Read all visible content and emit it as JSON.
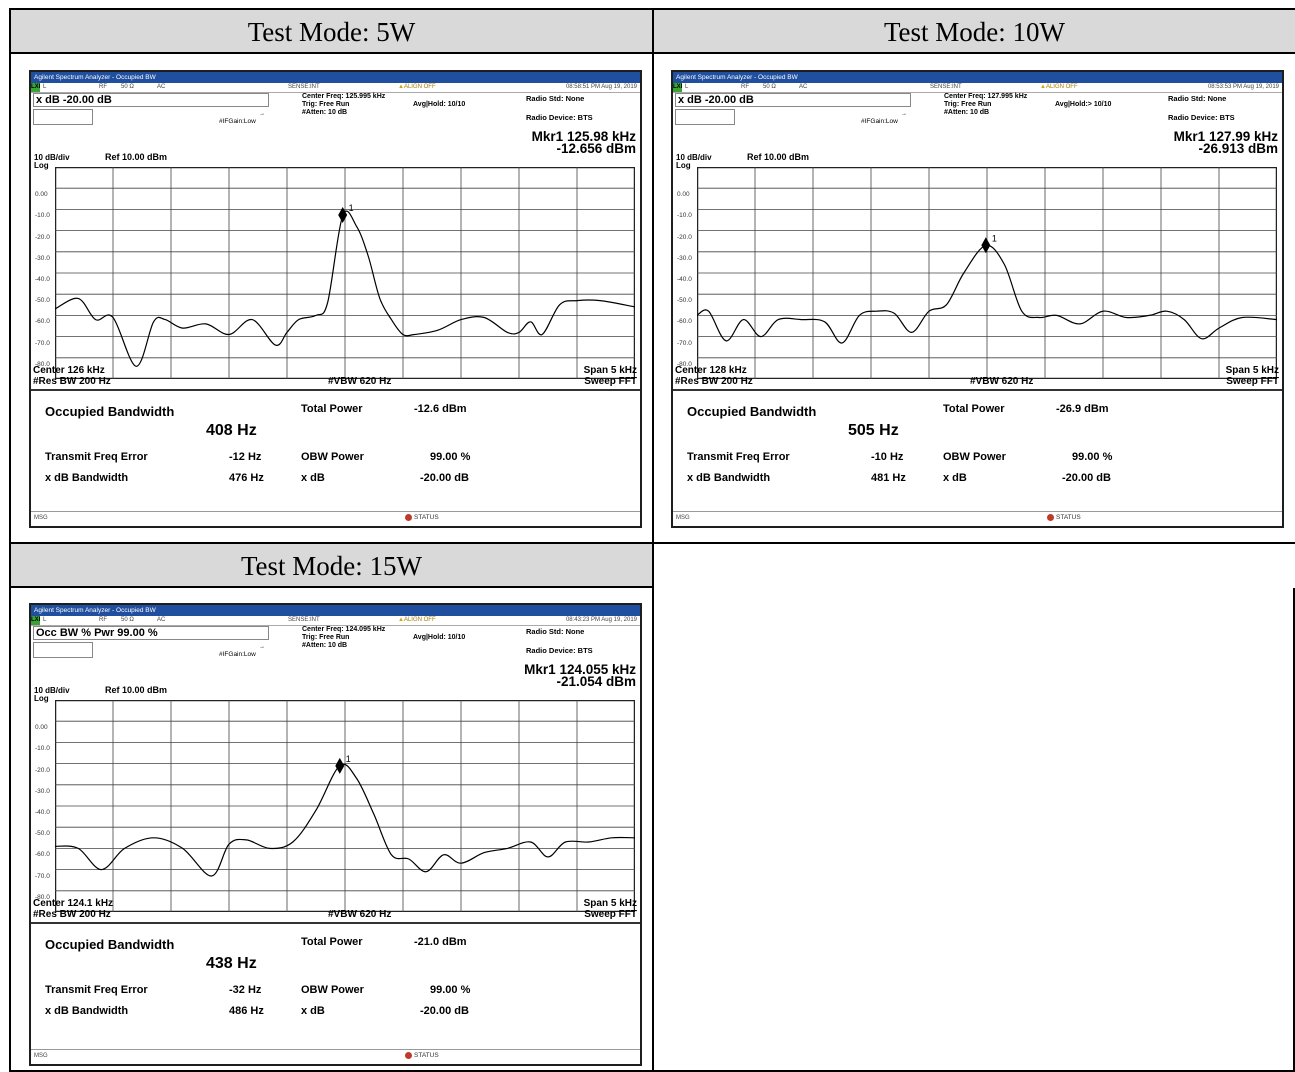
{
  "panels": [
    {
      "header": "Test Mode: 5W",
      "title": "Agilent Spectrum Analyzer - Occupied BW",
      "status": {
        "mode": "L",
        "rf": "RF",
        "imp": "50 Ω",
        "coupling": "AC",
        "sense": "SENSE:INT",
        "align": "ALIGN OFF",
        "time": "08:58:51 PM Aug 19, 2019"
      },
      "box_label": "x dB -20.00 dB",
      "center_freq": "Center Freq: 125.995 kHz",
      "trig": "Trig: Free Run",
      "avg_hold": "Avg|Hold: 10/10",
      "atten": "#Atten: 10 dB",
      "ifgain": "#IFGain:Low",
      "radio_std": "Radio Std: None",
      "radio_device": "Radio Device: BTS",
      "marker_line1": "Mkr1  125.98 kHz",
      "marker_line2": "-12.656 dBm",
      "scale_div": "10 dB/div",
      "scale_log": "Log",
      "ref": "Ref 10.00 dBm",
      "center": "Center  126 kHz",
      "span": "Span 5 kHz",
      "rbw": "#Res BW  200 Hz",
      "vbw": "#VBW  620 Hz",
      "sweep": "Sweep FFT",
      "occupied_bw_label": "Occupied Bandwidth",
      "occupied_bw": "408 Hz",
      "total_power_label": "Total Power",
      "total_power": "-12.6 dBm",
      "freq_err_label": "Transmit Freq Error",
      "freq_err": "-12 Hz",
      "obw_power_label": "OBW Power",
      "obw_power": "99.00 %",
      "xdb_bw_label": "x dB Bandwidth",
      "xdb_bw": "476 Hz",
      "xdb_label": "x dB",
      "xdb": "-20.00 dB",
      "msg": "MSG",
      "status_label": "STATUS",
      "marker_label": "1"
    },
    {
      "header": "Test Mode: 10W",
      "title": "Agilent Spectrum Analyzer - Occupied BW",
      "status": {
        "mode": "L",
        "rf": "RF",
        "imp": "50 Ω",
        "coupling": "AC",
        "sense": "SENSE:INT",
        "align": "ALIGN OFF",
        "time": "08:53:53 PM Aug 19, 2019"
      },
      "box_label": "x dB -20.00 dB",
      "center_freq": "Center Freq: 127.995 kHz",
      "trig": "Trig: Free Run",
      "avg_hold": "Avg|Hold:> 10/10",
      "atten": "#Atten: 10 dB",
      "ifgain": "#IFGain:Low",
      "radio_std": "Radio Std: None",
      "radio_device": "Radio Device: BTS",
      "marker_line1": "Mkr1  127.99 kHz",
      "marker_line2": "-26.913 dBm",
      "scale_div": "10 dB/div",
      "scale_log": "Log",
      "ref": "Ref 10.00 dBm",
      "center": "Center  128 kHz",
      "span": "Span 5 kHz",
      "rbw": "#Res BW  200 Hz",
      "vbw": "#VBW  620 Hz",
      "sweep": "Sweep FFT",
      "occupied_bw_label": "Occupied Bandwidth",
      "occupied_bw": "505 Hz",
      "total_power_label": "Total Power",
      "total_power": "-26.9 dBm",
      "freq_err_label": "Transmit Freq Error",
      "freq_err": "-10 Hz",
      "obw_power_label": "OBW Power",
      "obw_power": "99.00 %",
      "xdb_bw_label": "x dB Bandwidth",
      "xdb_bw": "481 Hz",
      "xdb_label": "x dB",
      "xdb": "-20.00 dB",
      "msg": "MSG",
      "status_label": "STATUS",
      "marker_label": "1"
    },
    {
      "header": "Test Mode: 15W",
      "title": "Agilent Spectrum Analyzer - Occupied BW",
      "status": {
        "mode": "L",
        "rf": "RF",
        "imp": "50 Ω",
        "coupling": "AC",
        "sense": "SENSE:INT",
        "align": "ALIGN OFF",
        "time": "08:43:23 PM Aug 19, 2019"
      },
      "box_label": "Occ BW % Pwr 99.00 %",
      "center_freq": "Center Freq: 124.095 kHz",
      "trig": "Trig: Free Run",
      "avg_hold": "Avg|Hold: 10/10",
      "atten": "#Atten: 10 dB",
      "ifgain": "#IFGain:Low",
      "radio_std": "Radio Std: None",
      "radio_device": "Radio Device: BTS",
      "marker_line1": "Mkr1  124.055 kHz",
      "marker_line2": "-21.054 dBm",
      "scale_div": "10 dB/div",
      "scale_log": "Log",
      "ref": "Ref 10.00 dBm",
      "center": "Center  124.1 kHz",
      "span": "Span 5 kHz",
      "rbw": "#Res BW  200 Hz",
      "vbw": "#VBW  620 Hz",
      "sweep": "Sweep FFT",
      "occupied_bw_label": "Occupied Bandwidth",
      "occupied_bw": "438 Hz",
      "total_power_label": "Total Power",
      "total_power": "-21.0 dBm",
      "freq_err_label": "Transmit Freq Error",
      "freq_err": "-32 Hz",
      "obw_power_label": "OBW Power",
      "obw_power": "99.00 %",
      "xdb_bw_label": "x dB Bandwidth",
      "xdb_bw": "486 Hz",
      "xdb_label": "x dB",
      "xdb": "-20.00 dB",
      "msg": "MSG",
      "status_label": "STATUS",
      "marker_label": "1"
    }
  ],
  "colors": {
    "title_bar": "#1f4f9e",
    "header_bg": "#d9d9d9",
    "trace": "#000000",
    "grid": "#444444"
  },
  "chart_data": [
    {
      "type": "line",
      "title": "Test Mode: 5W",
      "xlabel": "Center 126 kHz / Span 5 kHz",
      "ylabel": "",
      "x_unit": "kHz",
      "y_unit": "dBm",
      "xlim": [
        123.5,
        128.5
      ],
      "ylim": [
        -90,
        10
      ],
      "y_ticks": [
        "0.00",
        "-10.0",
        "-20.0",
        "-30.0",
        "-40.0",
        "-50.0",
        "-60.0",
        "-70.0",
        "-80.0"
      ],
      "grid": true,
      "marker": {
        "x": 125.98,
        "y": -12.656
      },
      "series": [
        {
          "x": [
            123.5,
            123.7,
            123.85,
            124.0,
            124.2,
            124.35,
            124.45,
            124.6,
            124.8,
            125.0,
            125.2,
            125.4,
            125.5,
            125.6,
            125.75,
            125.85,
            125.98,
            126.1,
            126.2,
            126.3,
            126.4,
            126.5,
            126.6,
            126.8,
            127.0,
            127.2,
            127.4,
            127.5,
            127.6,
            127.7,
            127.85,
            128.0,
            128.2,
            128.5
          ],
          "y": [
            -57,
            -52,
            -62,
            -61,
            -84,
            -63,
            -62,
            -66,
            -64,
            -69,
            -62,
            -74,
            -68,
            -62,
            -60,
            -54,
            -13,
            -18,
            -32,
            -52,
            -62,
            -69,
            -69,
            -67,
            -62,
            -61,
            -68,
            -68,
            -63,
            -69,
            -55,
            -53,
            -53,
            -56
          ]
        }
      ]
    },
    {
      "type": "line",
      "title": "Test Mode: 10W",
      "xlabel": "Center 128 kHz / Span 5 kHz",
      "ylabel": "",
      "x_unit": "kHz",
      "y_unit": "dBm",
      "xlim": [
        125.5,
        130.5
      ],
      "ylim": [
        -90,
        10
      ],
      "y_ticks": [
        "0.00",
        "-10.0",
        "-20.0",
        "-30.0",
        "-40.0",
        "-50.0",
        "-60.0",
        "-70.0",
        "-80.0"
      ],
      "grid": true,
      "marker": {
        "x": 127.99,
        "y": -26.913
      },
      "series": [
        {
          "x": [
            125.5,
            125.6,
            125.75,
            125.9,
            126.05,
            126.2,
            126.4,
            126.6,
            126.75,
            126.9,
            127.05,
            127.2,
            127.35,
            127.5,
            127.65,
            127.8,
            127.99,
            128.15,
            128.3,
            128.45,
            128.6,
            128.8,
            129.0,
            129.2,
            129.4,
            129.55,
            129.7,
            129.85,
            130.0,
            130.2,
            130.5
          ],
          "y": [
            -60,
            -58,
            -72,
            -62,
            -70,
            -62,
            -62,
            -63,
            -73,
            -60,
            -58,
            -59,
            -68,
            -58,
            -55,
            -40,
            -27,
            -36,
            -58,
            -61,
            -60,
            -64,
            -58,
            -61,
            -60,
            -58,
            -62,
            -71,
            -66,
            -61,
            -62
          ]
        }
      ]
    },
    {
      "type": "line",
      "title": "Test Mode: 15W",
      "xlabel": "Center 124.1 kHz / Span 5 kHz",
      "ylabel": "",
      "x_unit": "kHz",
      "y_unit": "dBm",
      "xlim": [
        121.6,
        126.6
      ],
      "ylim": [
        -90,
        10
      ],
      "y_ticks": [
        "0.00",
        "-10.0",
        "-20.0",
        "-30.0",
        "-40.0",
        "-50.0",
        "-60.0",
        "-70.0",
        "-80.0"
      ],
      "grid": true,
      "marker": {
        "x": 124.055,
        "y": -21.054
      },
      "series": [
        {
          "x": [
            121.6,
            121.8,
            122.0,
            122.2,
            122.45,
            122.7,
            122.95,
            123.1,
            123.25,
            123.45,
            123.65,
            123.85,
            124.055,
            124.2,
            124.35,
            124.5,
            124.65,
            124.8,
            124.95,
            125.1,
            125.3,
            125.5,
            125.7,
            125.85,
            126.0,
            126.2,
            126.4,
            126.6
          ],
          "y": [
            -59,
            -60,
            -70,
            -60,
            -55,
            -60,
            -73,
            -58,
            -56,
            -60,
            -57,
            -42,
            -21,
            -27,
            -44,
            -63,
            -65,
            -71,
            -63,
            -67,
            -62,
            -60,
            -57,
            -64,
            -57,
            -57,
            -55,
            -55
          ]
        }
      ]
    }
  ]
}
